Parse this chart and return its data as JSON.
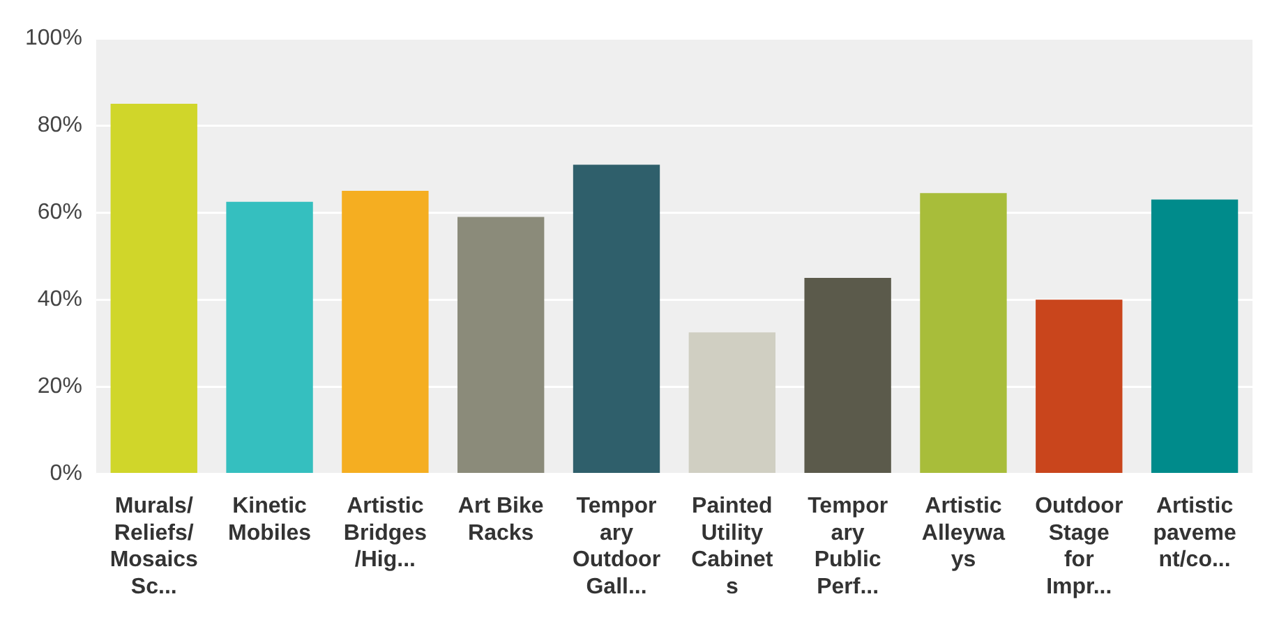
{
  "chart_data": {
    "type": "bar",
    "categories": [
      "Murals/Reliefs/Mosaics Sc...",
      "Kinetic Mobiles",
      "Artistic Bridges/Hig...",
      "Art Bike Racks",
      "Temporary Outdoor Gall...",
      "Painted Utility Cabinets",
      "Temporary Public Perf...",
      "Artistic Alleyways",
      "Outdoor Stage for Impr...",
      "Artistic pavement/co..."
    ],
    "values": [
      85,
      62.5,
      65,
      59,
      71,
      32.5,
      45,
      64.5,
      40,
      63
    ],
    "colors": [
      "#d0d62a",
      "#35bfbf",
      "#f5ae21",
      "#8b8b7a",
      "#2f5f6b",
      "#d0cfc2",
      "#5b5a4b",
      "#a8bd3a",
      "#c9451c",
      "#008b8b"
    ],
    "ylim": [
      0,
      100
    ],
    "yticks": [
      {
        "value": 0,
        "label": "0%"
      },
      {
        "value": 20,
        "label": "20%"
      },
      {
        "value": 40,
        "label": "40%"
      },
      {
        "value": 60,
        "label": "60%"
      },
      {
        "value": 80,
        "label": "80%"
      },
      {
        "value": 100,
        "label": "100%"
      }
    ],
    "grid": "y",
    "legend": false
  }
}
